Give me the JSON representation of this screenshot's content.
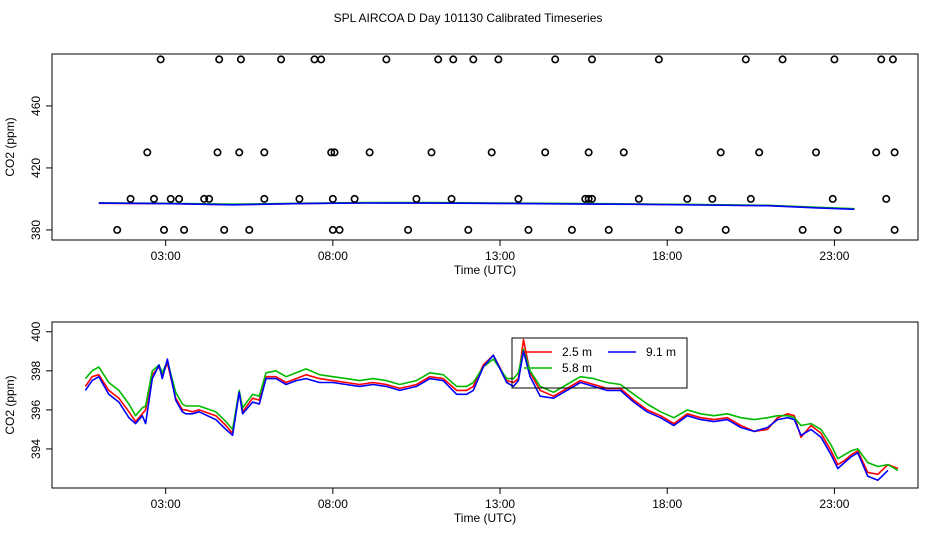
{
  "title": "SPL AIRCOA D  Day 101130  Calibrated Timeseries",
  "chart_data": [
    {
      "type": "line",
      "ylabel": "CO2 (ppm)",
      "xlabel": "Time (UTC)",
      "x_units": "hours UTC",
      "xlim": [
        -0.4,
        25.5
      ],
      "ylim": [
        373.5,
        493.5
      ],
      "xticks": [
        3,
        8,
        13,
        18,
        23
      ],
      "xtick_labels": [
        "03:00",
        "08:00",
        "13:00",
        "18:00",
        "23:00"
      ],
      "yticks": [
        380,
        420,
        460
      ],
      "ytick_labels": [
        "380",
        "420",
        "460"
      ],
      "series": [
        {
          "name": "2.5 m",
          "color": "#ff0000",
          "x": [
            1.0,
            3,
            5,
            7,
            9,
            11,
            13,
            15,
            17,
            19,
            21,
            22.5,
            23.6
          ],
          "y": [
            397.2,
            397,
            396.3,
            397,
            397.5,
            397.4,
            397.2,
            396.9,
            396.6,
            396.2,
            395.7,
            394.4,
            393.5
          ]
        },
        {
          "name": "5.8 m",
          "color": "#00bb00",
          "x": [
            1.0,
            3,
            5,
            7,
            9,
            11,
            13,
            15,
            17,
            19,
            21,
            22.5,
            23.6
          ],
          "y": [
            397.5,
            397.2,
            396.6,
            397.2,
            397.7,
            397.6,
            397.4,
            397.1,
            396.8,
            396.4,
            395.9,
            394.6,
            393.7
          ]
        },
        {
          "name": "9.1 m",
          "color": "#0000ff",
          "x": [
            1.0,
            3,
            5,
            7,
            9,
            11,
            13,
            15,
            17,
            19,
            21,
            22.5,
            23.6
          ],
          "y": [
            397.3,
            397,
            396.2,
            397,
            397.4,
            397.3,
            397.1,
            396.8,
            396.5,
            396.1,
            395.6,
            394.2,
            393.3
          ]
        }
      ],
      "flag_points": {
        "x": [
          1.55,
          1.95,
          2.45,
          2.65,
          2.85,
          2.95,
          3.15,
          3.4,
          3.55,
          4.15,
          4.3,
          4.55,
          4.6,
          4.75,
          5.2,
          5.25,
          5.5,
          5.95,
          5.95,
          6.45,
          7.0,
          7.45,
          7.65,
          7.95,
          8.0,
          8.0,
          8.05,
          8.2,
          8.65,
          9.1,
          9.6,
          10.25,
          10.5,
          10.95,
          11.15,
          11.55,
          11.6,
          12.05,
          12.2,
          12.75,
          12.95,
          13.55,
          13.85,
          14.35,
          14.65,
          15.15,
          15.55,
          15.65,
          15.65,
          15.75,
          15.75,
          16.25,
          16.7,
          17.15,
          17.75,
          18.35,
          18.6,
          19.35,
          19.6,
          19.75,
          20.35,
          20.5,
          20.75,
          21.45,
          22.05,
          22.45,
          22.95,
          23.0,
          23.1,
          24.25,
          24.4,
          24.55,
          24.75,
          24.8,
          24.8
        ],
        "y": [
          380,
          400,
          430,
          400,
          490,
          380,
          400,
          400,
          380,
          400,
          400,
          430,
          490,
          380,
          430,
          490,
          380,
          400,
          430,
          490,
          400,
          490,
          490,
          430,
          400,
          380,
          430,
          380,
          400,
          430,
          490,
          380,
          400,
          430,
          490,
          400,
          490,
          380,
          490,
          430,
          490,
          400,
          380,
          430,
          490,
          380,
          400,
          400,
          430,
          400,
          490,
          380,
          430,
          400,
          490,
          380,
          400,
          400,
          430,
          380,
          490,
          400,
          430,
          490,
          380,
          430,
          400,
          490,
          380,
          430,
          490,
          400,
          490,
          380,
          430
        ]
      }
    },
    {
      "type": "line",
      "ylabel": "CO2 (ppm)",
      "xlabel": "Time (UTC)",
      "x_units": "hours UTC",
      "xlim": [
        -0.4,
        25.5
      ],
      "ylim": [
        392.0,
        400.5
      ],
      "xticks": [
        3,
        8,
        13,
        18,
        23
      ],
      "xtick_labels": [
        "03:00",
        "08:00",
        "13:00",
        "18:00",
        "23:00"
      ],
      "yticks": [
        394,
        396,
        398,
        400
      ],
      "ytick_labels": [
        "394",
        "396",
        "398",
        "400"
      ],
      "legend": {
        "position": "top-center",
        "entries": [
          "2.5 m",
          "5.8 m",
          "9.1 m"
        ]
      },
      "series": [
        {
          "name": "2.5 m",
          "color": "#ff0000",
          "x": [
            0.6,
            0.8,
            1.0,
            1.3,
            1.6,
            1.9,
            2.1,
            2.3,
            2.4,
            2.6,
            2.8,
            2.9,
            3.05,
            3.3,
            3.5,
            3.6,
            3.8,
            4.0,
            4.5,
            4.8,
            5.0,
            5.2,
            5.3,
            5.6,
            5.8,
            6.0,
            6.3,
            6.6,
            6.9,
            7.2,
            7.6,
            8.0,
            8.4,
            8.8,
            9.2,
            9.6,
            10.0,
            10.5,
            10.9,
            11.3,
            11.7,
            12.0,
            12.2,
            12.5,
            12.8,
            13.2,
            13.4,
            13.55,
            13.7,
            13.9,
            14.2,
            14.6,
            15.0,
            15.4,
            15.8,
            16.2,
            16.6,
            17.0,
            17.4,
            17.8,
            18.2,
            18.6,
            19.0,
            19.4,
            19.8,
            20.2,
            20.6,
            21.0,
            21.3,
            21.6,
            21.8,
            22.0,
            22.3,
            22.6,
            22.9,
            23.1,
            23.3,
            23.5,
            23.7,
            24.0,
            24.3,
            24.6,
            24.9
          ],
          "y": [
            397.2,
            397.7,
            397.8,
            397.0,
            396.6,
            395.9,
            395.4,
            395.8,
            396.0,
            397.8,
            398.2,
            397.8,
            398.4,
            396.6,
            396.0,
            396.0,
            395.9,
            396.0,
            395.7,
            395.2,
            394.8,
            396.9,
            395.9,
            396.6,
            396.5,
            397.7,
            397.7,
            397.4,
            397.6,
            397.8,
            397.6,
            397.5,
            397.4,
            397.3,
            397.4,
            397.3,
            397.1,
            397.3,
            397.7,
            397.6,
            397.0,
            397.0,
            397.2,
            398.3,
            398.8,
            397.5,
            397.4,
            397.6,
            399.6,
            397.9,
            397.0,
            396.7,
            397.1,
            397.5,
            397.3,
            397.1,
            397.1,
            396.5,
            396.0,
            395.7,
            395.3,
            395.8,
            395.6,
            395.5,
            395.6,
            395.2,
            394.9,
            395.0,
            395.6,
            395.8,
            395.7,
            394.6,
            395.2,
            394.8,
            393.9,
            393.2,
            393.4,
            393.7,
            393.9,
            392.8,
            392.7,
            393.2,
            393.0
          ]
        },
        {
          "name": "5.8 m",
          "color": "#00bb00",
          "x": [
            0.6,
            0.8,
            1.0,
            1.3,
            1.6,
            1.9,
            2.1,
            2.3,
            2.4,
            2.6,
            2.8,
            2.9,
            3.05,
            3.3,
            3.5,
            3.6,
            3.8,
            4.0,
            4.5,
            4.8,
            5.0,
            5.2,
            5.3,
            5.6,
            5.8,
            6.0,
            6.3,
            6.6,
            6.9,
            7.2,
            7.6,
            8.0,
            8.4,
            8.8,
            9.2,
            9.6,
            10.0,
            10.5,
            10.9,
            11.3,
            11.7,
            12.0,
            12.2,
            12.5,
            12.8,
            13.2,
            13.4,
            13.55,
            13.7,
            13.9,
            14.2,
            14.6,
            15.0,
            15.4,
            15.8,
            16.2,
            16.6,
            17.0,
            17.4,
            17.8,
            18.2,
            18.6,
            19.0,
            19.4,
            19.8,
            20.2,
            20.6,
            21.0,
            21.3,
            21.6,
            21.8,
            22.0,
            22.3,
            22.6,
            22.9,
            23.1,
            23.3,
            23.5,
            23.7,
            24.0,
            24.3,
            24.6,
            24.9
          ],
          "y": [
            397.6,
            398.0,
            398.2,
            397.4,
            397.0,
            396.3,
            395.7,
            396.1,
            396.2,
            398.0,
            398.3,
            397.9,
            398.5,
            396.9,
            396.3,
            396.2,
            396.2,
            396.2,
            395.9,
            395.4,
            395.0,
            397.0,
            396.1,
            396.8,
            396.7,
            397.9,
            398.0,
            397.7,
            397.9,
            398.1,
            397.8,
            397.7,
            397.6,
            397.5,
            397.6,
            397.5,
            397.3,
            397.5,
            397.9,
            397.8,
            397.2,
            397.2,
            397.4,
            398.2,
            398.6,
            397.6,
            397.6,
            397.9,
            399.1,
            398.0,
            397.2,
            396.9,
            397.3,
            397.7,
            397.6,
            397.4,
            397.3,
            396.8,
            396.3,
            395.9,
            395.6,
            396.0,
            395.8,
            395.7,
            395.8,
            395.6,
            395.5,
            395.6,
            395.7,
            395.7,
            395.6,
            395.2,
            395.3,
            395.0,
            394.2,
            393.5,
            393.7,
            393.9,
            394.0,
            393.3,
            393.1,
            393.2,
            392.9
          ]
        },
        {
          "name": "9.1 m",
          "color": "#0000ff",
          "x": [
            0.6,
            0.8,
            1.0,
            1.3,
            1.6,
            1.9,
            2.1,
            2.3,
            2.4,
            2.6,
            2.8,
            2.9,
            3.05,
            3.3,
            3.5,
            3.6,
            3.8,
            4.0,
            4.5,
            4.8,
            5.0,
            5.2,
            5.3,
            5.6,
            5.8,
            6.0,
            6.3,
            6.6,
            6.9,
            7.2,
            7.6,
            8.0,
            8.4,
            8.8,
            9.2,
            9.6,
            10.0,
            10.5,
            10.9,
            11.3,
            11.7,
            12.0,
            12.2,
            12.5,
            12.8,
            13.2,
            13.4,
            13.55,
            13.7,
            13.9,
            14.2,
            14.6,
            15.0,
            15.4,
            15.8,
            16.2,
            16.6,
            17.0,
            17.4,
            17.8,
            18.2,
            18.6,
            19.0,
            19.4,
            19.8,
            20.2,
            20.6,
            21.0,
            21.3,
            21.6,
            21.8,
            22.0,
            22.3,
            22.6,
            22.9,
            23.1,
            23.3,
            23.5,
            23.7,
            24.0,
            24.3,
            24.6
          ],
          "y": [
            397.0,
            397.5,
            397.7,
            396.8,
            396.4,
            395.6,
            395.3,
            395.7,
            395.3,
            397.6,
            398.3,
            397.6,
            398.6,
            396.5,
            395.9,
            395.8,
            395.8,
            395.9,
            395.5,
            395.0,
            394.7,
            396.9,
            395.8,
            396.4,
            396.3,
            397.6,
            397.6,
            397.3,
            397.5,
            397.6,
            397.4,
            397.4,
            397.3,
            397.2,
            397.3,
            397.2,
            397.0,
            397.2,
            397.6,
            397.5,
            396.8,
            396.8,
            397.0,
            398.2,
            398.8,
            397.4,
            397.2,
            397.5,
            399.0,
            397.7,
            396.7,
            396.6,
            397.0,
            397.4,
            397.2,
            397.0,
            397.0,
            396.4,
            395.9,
            395.6,
            395.2,
            395.7,
            395.5,
            395.4,
            395.5,
            395.1,
            394.9,
            395.1,
            395.5,
            395.6,
            395.5,
            394.7,
            395.0,
            394.6,
            393.7,
            393.0,
            393.3,
            393.6,
            393.8,
            392.6,
            392.4,
            392.9
          ]
        }
      ]
    }
  ]
}
